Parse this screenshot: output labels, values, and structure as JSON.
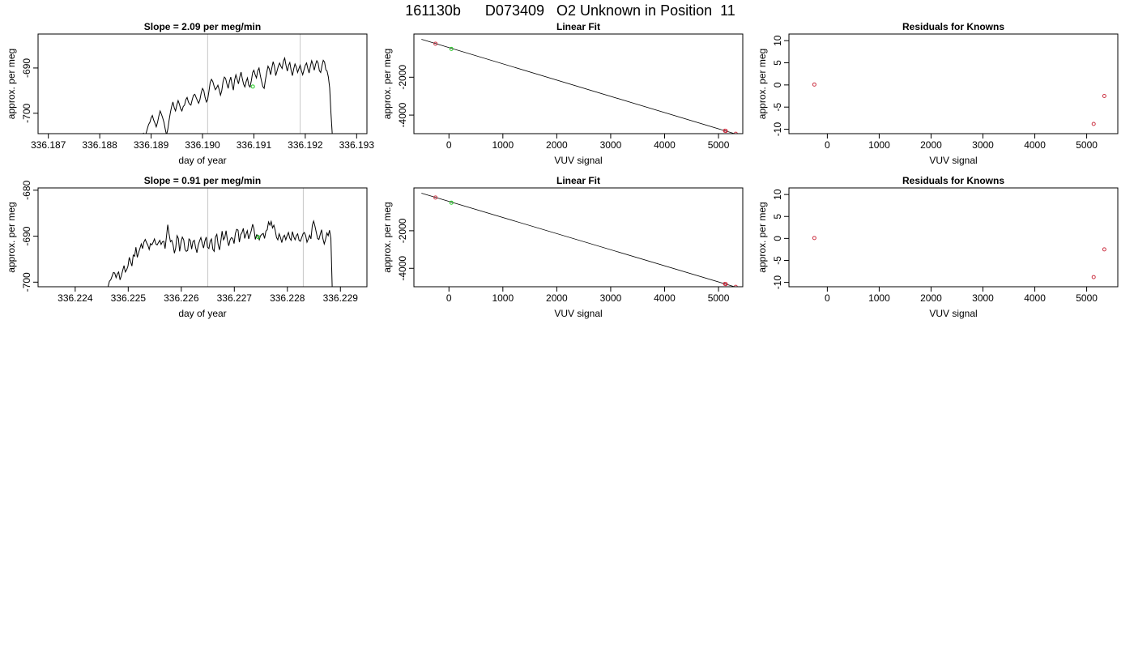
{
  "page_title": "161130b      D073409   O2 Unknown in Position  11",
  "colors": {
    "line": "#000000",
    "grid_vline": "#c8c8c8",
    "known_point": "#cc3344",
    "unknown_point": "#22cc22"
  },
  "chart_data": [
    {
      "id": "slope-1",
      "type": "line",
      "title": "Slope =  2.09  per meg/min",
      "xlabel": "day of year",
      "ylabel": "approx. per meg",
      "xlim": [
        336.1868,
        336.1932
      ],
      "ylim": [
        -704.5,
        -682.5
      ],
      "x_ticks": [
        336.187,
        336.188,
        336.189,
        336.19,
        336.191,
        336.192,
        336.193
      ],
      "x_tick_labels": [
        "336.187",
        "336.188",
        "336.189",
        "336.190",
        "336.191",
        "336.192",
        "336.193"
      ],
      "y_ticks": [
        -700,
        -690
      ],
      "y_tick_labels": [
        "-700",
        "-690"
      ],
      "vlines": [
        336.1901,
        336.1919
      ],
      "series": [
        {
          "x_start": 336.18885,
          "x_step": 2.5e-05,
          "values": [
            -704.3,
            -705,
            -704.5,
            -703.5,
            -702.5,
            -702,
            -701,
            -700.5,
            -701.5,
            -702.2,
            -703,
            -702,
            -700.6,
            -699.5,
            -700.2,
            -701,
            -702,
            -703.5,
            -704.8,
            -703.5,
            -701.5,
            -699.8,
            -698.5,
            -697.5,
            -698.8,
            -699.5,
            -698.2,
            -697.2,
            -698,
            -699,
            -699.5,
            -698.5,
            -698.2,
            -697,
            -696.5,
            -697.5,
            -698,
            -698.2,
            -697,
            -696,
            -695.8,
            -696.5,
            -697.2,
            -697.8,
            -697,
            -695.5,
            -694.5,
            -695,
            -696.5,
            -697.5,
            -697,
            -695.2,
            -693.2,
            -692.5,
            -693,
            -694,
            -694.8,
            -694.4,
            -693.8,
            -694.8,
            -696,
            -695,
            -693,
            -692,
            -692.3,
            -693.5,
            -694.5,
            -693,
            -692,
            -693.6,
            -694.9,
            -692.7,
            -691.5,
            -692.5,
            -693.5,
            -692,
            -690.9,
            -692.4,
            -693.6,
            -694.2,
            -693,
            -692.2,
            -693.8,
            -694.2,
            -692.8,
            -691,
            -690.5,
            -691.5,
            -692.2,
            -690.6,
            -690,
            -691.7,
            -693,
            -694.1,
            -694.5,
            -692.6,
            -691,
            -689.6,
            -690.2,
            -691.5,
            -690,
            -688.6,
            -689.6,
            -691.7,
            -690.7,
            -689.6,
            -688.9,
            -689.6,
            -690.1,
            -688.5,
            -687.8,
            -689.4,
            -690.7,
            -689.4,
            -688.8,
            -690.5,
            -691.7,
            -690.2,
            -689.1,
            -689.8,
            -691,
            -690.2,
            -689.4,
            -690.6,
            -691.5,
            -690.4,
            -689.4,
            -688.9,
            -690.1,
            -691.1,
            -689.6,
            -688.4,
            -689.3,
            -690.5,
            -689.2,
            -688.4,
            -688.9,
            -690.6,
            -691,
            -689.5,
            -688.3,
            -688.7,
            -690.4,
            -690.7,
            -692,
            -694.4,
            -700,
            -704.6
          ],
          "markers": [
            {
              "x": 336.19098,
              "y": -694.1,
              "color": "#22cc22"
            }
          ]
        }
      ]
    },
    {
      "id": "fit-1",
      "type": "line",
      "title": "Linear Fit",
      "xlabel": "VUV signal",
      "ylabel": "approx. per meg",
      "xlim": [
        -650,
        5450
      ],
      "ylim": [
        -4980,
        280
      ],
      "x_ticks": [
        0,
        1000,
        2000,
        3000,
        4000,
        5000
      ],
      "x_tick_labels": [
        "0",
        "1000",
        "2000",
        "3000",
        "4000",
        "5000"
      ],
      "y_ticks": [
        -4000,
        -2000
      ],
      "y_tick_labels": [
        "-4000",
        "-2000"
      ],
      "fit_line": [
        [
          -510,
          0
        ],
        [
          5310,
          -4990
        ]
      ],
      "series": [
        {
          "name": "knowns",
          "color": "#cc3344",
          "points": [
            [
              -250,
              -231
            ],
            [
              5120,
              -4827
            ],
            [
              5135,
              -4838
            ],
            [
              5320,
              -4986
            ]
          ]
        },
        {
          "name": "unknown",
          "color": "#22cc22",
          "points": [
            [
              45,
              -505
            ]
          ]
        }
      ]
    },
    {
      "id": "resid-1",
      "type": "scatter",
      "title": "Residuals for Knowns",
      "xlabel": "VUV signal",
      "ylabel": "approx. per meg",
      "xlim": [
        -740,
        5600
      ],
      "ylim": [
        -11,
        11.5
      ],
      "x_ticks": [
        0,
        1000,
        2000,
        3000,
        4000,
        5000
      ],
      "x_tick_labels": [
        "0",
        "1000",
        "2000",
        "3000",
        "4000",
        "5000"
      ],
      "y_ticks": [
        -10,
        -5,
        0,
        5,
        10
      ],
      "y_tick_labels": [
        "-10",
        "-5",
        "0",
        "5",
        "10"
      ],
      "series": [
        {
          "name": "knowns",
          "color": "#cc3344",
          "points": [
            [
              -250,
              0.1
            ],
            [
              5135,
              -8.8
            ],
            [
              5340,
              -2.5
            ]
          ]
        }
      ]
    },
    {
      "id": "slope-2",
      "type": "line",
      "title": "Slope =  0.91  per meg/min",
      "xlabel": "day of year",
      "ylabel": "approx. per meg",
      "xlim": [
        336.2233,
        336.2295
      ],
      "ylim": [
        -701,
        -679.5
      ],
      "x_ticks": [
        336.224,
        336.225,
        336.226,
        336.227,
        336.228,
        336.229
      ],
      "x_tick_labels": [
        "336.224",
        "336.225",
        "336.226",
        "336.227",
        "336.228",
        "336.229"
      ],
      "y_ticks": [
        -700,
        -690,
        -680
      ],
      "y_tick_labels": [
        "-700",
        "-690",
        "-680"
      ],
      "vlines": [
        336.2265,
        336.2283
      ],
      "series": [
        {
          "x_start": 336.22462,
          "x_step": 2.5e-05,
          "values": [
            -701,
            -699.8,
            -699.5,
            -698.7,
            -697.9,
            -698,
            -699,
            -698.2,
            -697.8,
            -699.5,
            -698.6,
            -697.5,
            -696.4,
            -697.8,
            -697.3,
            -696.5,
            -694.6,
            -695.6,
            -696.5,
            -694.1,
            -694.4,
            -692.4,
            -694.6,
            -693.6,
            -692.7,
            -691.7,
            -692.7,
            -691.3,
            -690.7,
            -691.4,
            -692,
            -692.9,
            -691.6,
            -691.9,
            -691.3,
            -690.6,
            -691.7,
            -691.9,
            -691.4,
            -690.9,
            -691.8,
            -691.2,
            -691.1,
            -692.7,
            -690.1,
            -687.5,
            -689.5,
            -691.2,
            -690.9,
            -691.9,
            -693.7,
            -692.6,
            -689.9,
            -690.5,
            -693.3,
            -691.3,
            -690.2,
            -690.8,
            -692.9,
            -693.3,
            -693.1,
            -690.6,
            -690.9,
            -692.8,
            -691.2,
            -690.9,
            -692.5,
            -693.6,
            -691.9,
            -691,
            -690.3,
            -691.6,
            -692.6,
            -691.1,
            -690.2,
            -692.4,
            -692.7,
            -691.1,
            -690.6,
            -692.9,
            -693.3,
            -690.2,
            -689.6,
            -691.8,
            -693,
            -691.1,
            -688.9,
            -690.8,
            -690.3,
            -688.8,
            -690.9,
            -692.1,
            -690.8,
            -690.3,
            -690.5,
            -691.6,
            -689.4,
            -688.5,
            -688.7,
            -691.3,
            -689.7,
            -689.2,
            -688.3,
            -690.5,
            -689.6,
            -688.8,
            -690.6,
            -689.7,
            -688.8,
            -687.4,
            -688.4,
            -690.7,
            -689.7,
            -689.8,
            -690.8,
            -689.9,
            -689.6,
            -689.4,
            -690.5,
            -688.9,
            -688.6,
            -686.9,
            -687.6,
            -686.8,
            -688.2,
            -687.6,
            -688.7,
            -690.3,
            -690.8,
            -689.5,
            -690.3,
            -691.4,
            -690.2,
            -689.8,
            -690.8,
            -689.9,
            -689.2,
            -690.4,
            -690.9,
            -689,
            -690.1,
            -690.8,
            -689.9,
            -689.5,
            -690.9,
            -691.1,
            -690.3,
            -689.5,
            -689.2,
            -689.9,
            -691.3,
            -690.6,
            -689.8,
            -690.6,
            -687.6,
            -686.7,
            -687.8,
            -689.2,
            -690.5,
            -690.7,
            -689.6,
            -688.6,
            -690.5,
            -691.7,
            -690.7,
            -689.3,
            -689.9,
            -688.7,
            -690.5,
            -701
          ],
          "markers": [
            {
              "x": 336.22745,
              "y": -690.2,
              "color": "#22cc22"
            }
          ]
        }
      ]
    },
    {
      "id": "fit-2",
      "type": "line",
      "title": "Linear Fit",
      "xlabel": "VUV signal",
      "ylabel": "approx. per meg",
      "xlim": [
        -650,
        5450
      ],
      "ylim": [
        -4980,
        280
      ],
      "x_ticks": [
        0,
        1000,
        2000,
        3000,
        4000,
        5000
      ],
      "x_tick_labels": [
        "0",
        "1000",
        "2000",
        "3000",
        "4000",
        "5000"
      ],
      "y_ticks": [
        -4000,
        -2000
      ],
      "y_tick_labels": [
        "-4000",
        "-2000"
      ],
      "fit_line": [
        [
          -510,
          0
        ],
        [
          5310,
          -4990
        ]
      ],
      "series": [
        {
          "name": "knowns",
          "color": "#cc3344",
          "points": [
            [
              -250,
              -231
            ],
            [
              5120,
              -4827
            ],
            [
              5135,
              -4838
            ],
            [
              5320,
              -4986
            ]
          ]
        },
        {
          "name": "unknown",
          "color": "#22cc22",
          "points": [
            [
              45,
              -505
            ]
          ]
        }
      ]
    },
    {
      "id": "resid-2",
      "type": "scatter",
      "title": "Residuals for Knowns",
      "xlabel": "VUV signal",
      "ylabel": "approx. per meg",
      "xlim": [
        -740,
        5600
      ],
      "ylim": [
        -11,
        11.5
      ],
      "x_ticks": [
        0,
        1000,
        2000,
        3000,
        4000,
        5000
      ],
      "x_tick_labels": [
        "0",
        "1000",
        "2000",
        "3000",
        "4000",
        "5000"
      ],
      "y_ticks": [
        -10,
        -5,
        0,
        5,
        10
      ],
      "y_tick_labels": [
        "-10",
        "-5",
        "0",
        "5",
        "10"
      ],
      "series": [
        {
          "name": "knowns",
          "color": "#cc3344",
          "points": [
            [
              -250,
              0.1
            ],
            [
              5135,
              -8.8
            ],
            [
              5340,
              -2.5
            ]
          ]
        }
      ]
    }
  ]
}
